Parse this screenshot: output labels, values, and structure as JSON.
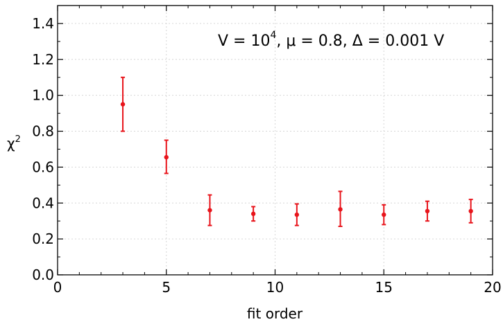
{
  "chart_data": {
    "type": "scatter",
    "title": "",
    "annotation": {
      "prefix": "V = 10",
      "exponent": "4",
      "suffix": ", μ = 0.8, Δ = 0.001 V"
    },
    "xlabel": "fit order",
    "ylabel": {
      "base": "χ",
      "exponent": "2"
    },
    "xlim": [
      0,
      20
    ],
    "ylim": [
      0.0,
      1.5
    ],
    "xticks": [
      0,
      5,
      10,
      15,
      20
    ],
    "xtick_labels": [
      "0",
      "5",
      "10",
      "15",
      "20"
    ],
    "yticks": [
      0.0,
      0.2,
      0.4,
      0.6,
      0.8,
      1.0,
      1.2,
      1.4
    ],
    "ytick_labels": [
      "0.0",
      "0.2",
      "0.4",
      "0.6",
      "0.8",
      "1.0",
      "1.2",
      "1.4"
    ],
    "grid": true,
    "color": "#e8141b",
    "series": [
      {
        "x": [
          3,
          5,
          7,
          9,
          11,
          13,
          15,
          17,
          19
        ],
        "y": [
          0.95,
          0.655,
          0.36,
          0.34,
          0.335,
          0.365,
          0.335,
          0.355,
          0.355
        ],
        "yerr_low": [
          0.8,
          0.565,
          0.275,
          0.3,
          0.275,
          0.27,
          0.28,
          0.3,
          0.29
        ],
        "yerr_high": [
          1.1,
          0.75,
          0.445,
          0.38,
          0.395,
          0.465,
          0.39,
          0.41,
          0.42
        ]
      }
    ]
  }
}
